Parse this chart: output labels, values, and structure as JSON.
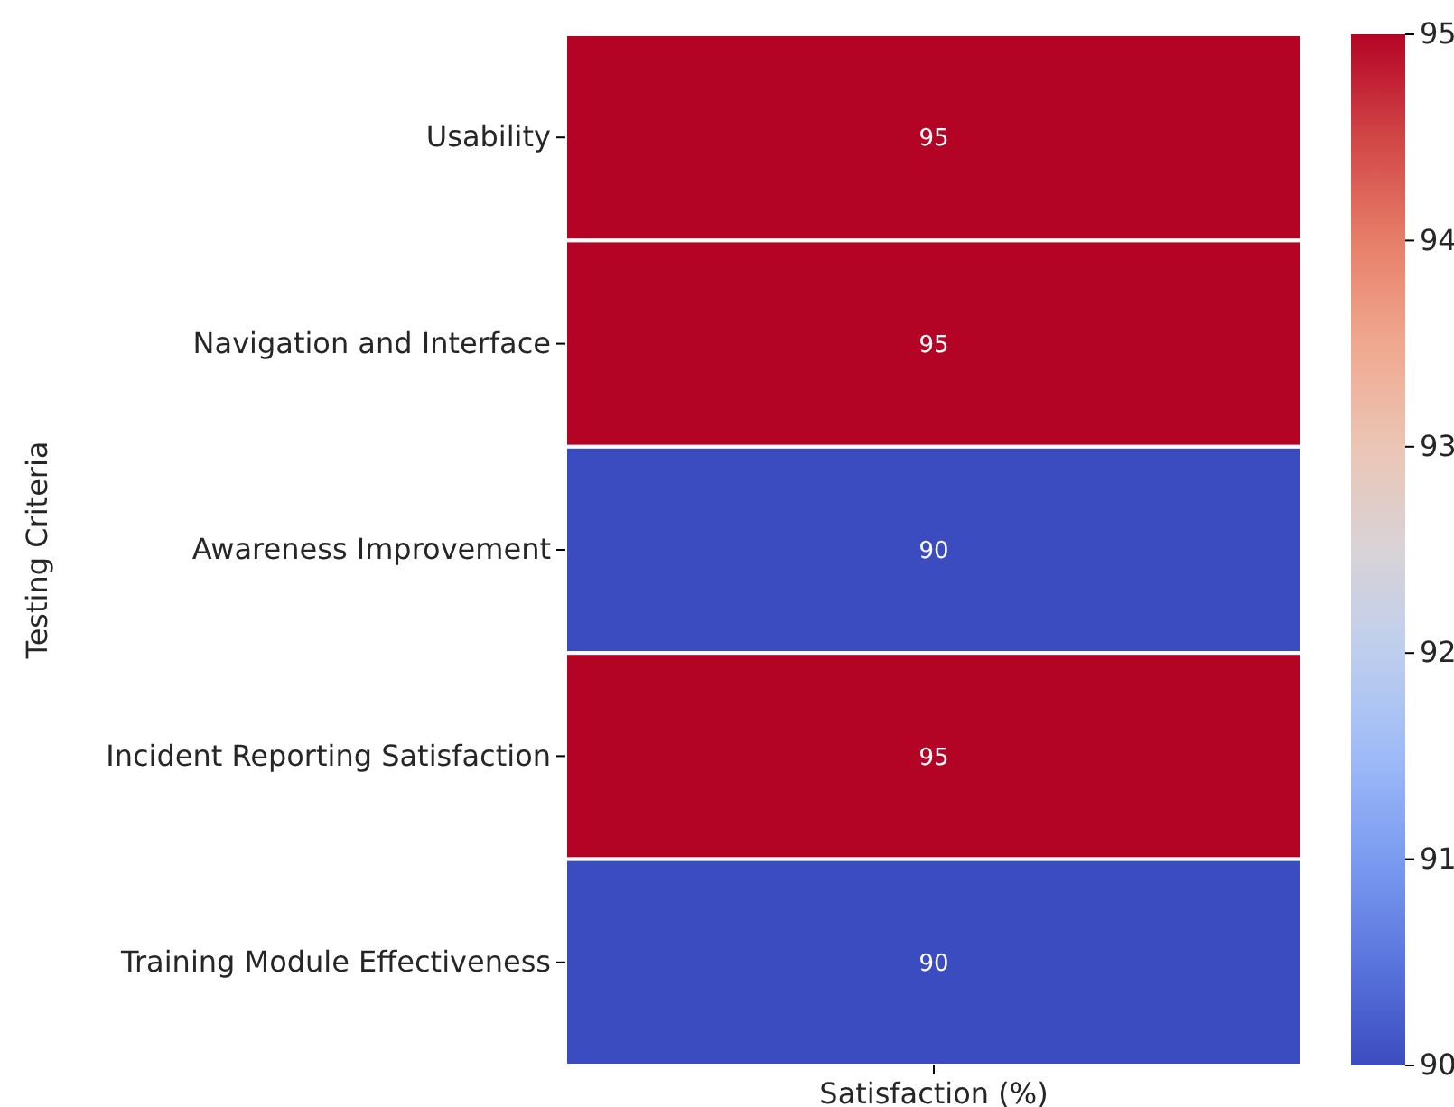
{
  "chart_data": {
    "type": "heatmap",
    "ylabel": "Testing Criteria",
    "xlabel": "Satisfaction (%)",
    "categories": [
      null
    ],
    "y_categories": [
      "Usability",
      "Navigation and Interface",
      "Awareness Improvement",
      "Incident Reporting Satisfaction",
      "Training Module Effectiveness"
    ],
    "cells": [
      [
        95
      ],
      [
        95
      ],
      [
        90
      ],
      [
        95
      ],
      [
        90
      ]
    ],
    "data_labels": true,
    "clim": [
      90,
      95
    ],
    "cticks": [
      90,
      91,
      92,
      93,
      94,
      95
    ]
  }
}
